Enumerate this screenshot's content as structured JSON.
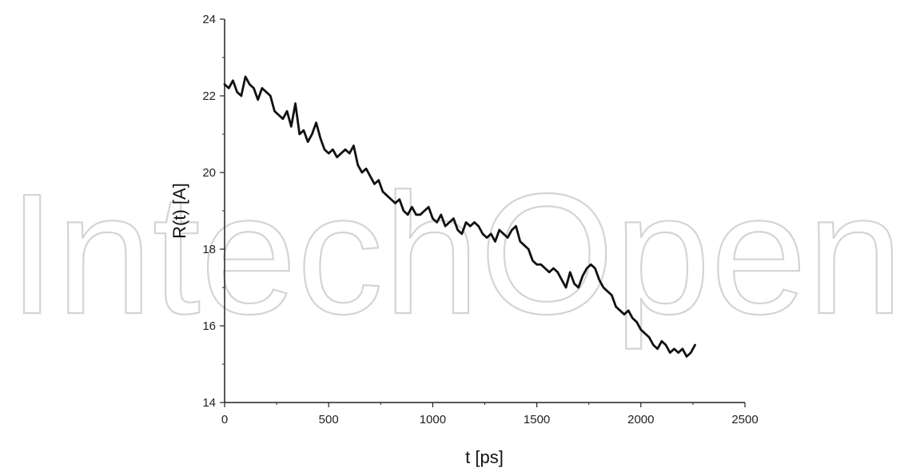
{
  "watermark": {
    "text": "IntechOpen",
    "color": "#d4d4d4"
  },
  "chart_data": {
    "type": "line",
    "title": "",
    "xlabel": "t [ps]",
    "ylabel": "R(t) [A]",
    "xlim": [
      0,
      2500
    ],
    "ylim": [
      14,
      24
    ],
    "xticks": [
      0,
      500,
      1000,
      1500,
      2000,
      2500
    ],
    "yticks": [
      14,
      16,
      18,
      20,
      22,
      24
    ],
    "grid": false,
    "legend": "none",
    "line_color": "#111111",
    "series": [
      {
        "x": [
          0,
          20,
          40,
          60,
          80,
          100,
          120,
          140,
          160,
          180,
          200,
          220,
          240,
          260,
          280,
          300,
          320,
          340,
          360,
          380,
          400,
          420,
          440,
          460,
          480,
          500,
          520,
          540,
          560,
          580,
          600,
          620,
          640,
          660,
          680,
          700,
          720,
          740,
          760,
          780,
          800,
          820,
          840,
          860,
          880,
          900,
          920,
          940,
          960,
          980,
          1000,
          1020,
          1040,
          1060,
          1080,
          1100,
          1120,
          1140,
          1160,
          1180,
          1200,
          1220,
          1240,
          1260,
          1280,
          1300,
          1320,
          1340,
          1360,
          1380,
          1400,
          1420,
          1440,
          1460,
          1480,
          1500,
          1520,
          1540,
          1560,
          1580,
          1600,
          1620,
          1640,
          1660,
          1680,
          1700,
          1720,
          1740,
          1760,
          1780,
          1800,
          1820,
          1840,
          1860,
          1880,
          1900,
          1920,
          1940,
          1960,
          1980,
          2000,
          2020,
          2040,
          2060,
          2080,
          2100,
          2120,
          2140,
          2160,
          2180,
          2200,
          2220,
          2240,
          2260
        ],
        "y": [
          22.3,
          22.2,
          22.4,
          22.1,
          22.0,
          22.5,
          22.3,
          22.2,
          21.9,
          22.2,
          22.1,
          22.0,
          21.6,
          21.5,
          21.4,
          21.6,
          21.2,
          21.8,
          21.0,
          21.1,
          20.8,
          21.0,
          21.3,
          20.9,
          20.6,
          20.5,
          20.6,
          20.4,
          20.5,
          20.6,
          20.5,
          20.7,
          20.2,
          20.0,
          20.1,
          19.9,
          19.7,
          19.8,
          19.5,
          19.4,
          19.3,
          19.2,
          19.3,
          19.0,
          18.9,
          19.1,
          18.9,
          18.9,
          19.0,
          19.1,
          18.8,
          18.7,
          18.9,
          18.6,
          18.7,
          18.8,
          18.5,
          18.4,
          18.7,
          18.6,
          18.7,
          18.6,
          18.4,
          18.3,
          18.4,
          18.2,
          18.5,
          18.4,
          18.3,
          18.5,
          18.6,
          18.2,
          18.1,
          18.0,
          17.7,
          17.6,
          17.6,
          17.5,
          17.4,
          17.5,
          17.4,
          17.2,
          17.0,
          17.4,
          17.1,
          17.0,
          17.3,
          17.5,
          17.6,
          17.5,
          17.2,
          17.0,
          16.9,
          16.8,
          16.5,
          16.4,
          16.3,
          16.4,
          16.2,
          16.1,
          15.9,
          15.8,
          15.7,
          15.5,
          15.4,
          15.6,
          15.5,
          15.3,
          15.4,
          15.3,
          15.4,
          15.2,
          15.3,
          15.5
        ]
      }
    ]
  }
}
